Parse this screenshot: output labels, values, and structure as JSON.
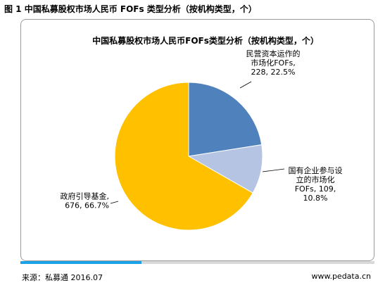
{
  "figure_caption": "图 1 中国私募股权市场人民币 FOFs 类型分析（按机构类型，个）",
  "source_text": "来源：私募通 2016.07",
  "website": "www.pedata.cn",
  "colors": {
    "government": "#FFC000",
    "private": "#4F81BD",
    "state": "#B4C4E2"
  },
  "chart_data": {
    "type": "pie",
    "title": "中国私募股权市场人民币FOFs类型分析（按机构类型，个）",
    "slices": [
      {
        "lines": [
          "民营资本运作的",
          "市场化FOFs,",
          "228, 22.5%"
        ],
        "value": 228,
        "percent": 22.5,
        "color": "#4F81BD"
      },
      {
        "lines": [
          "国有企业参与设",
          "立的市场化",
          "FOFs, 109,",
          "10.8%"
        ],
        "value": 109,
        "percent": 10.8,
        "color": "#B4C4E2"
      },
      {
        "lines": [
          "政府引导基金,",
          "676, 66.7%"
        ],
        "value": 676,
        "percent": 66.7,
        "color": "#FFC000"
      }
    ]
  }
}
